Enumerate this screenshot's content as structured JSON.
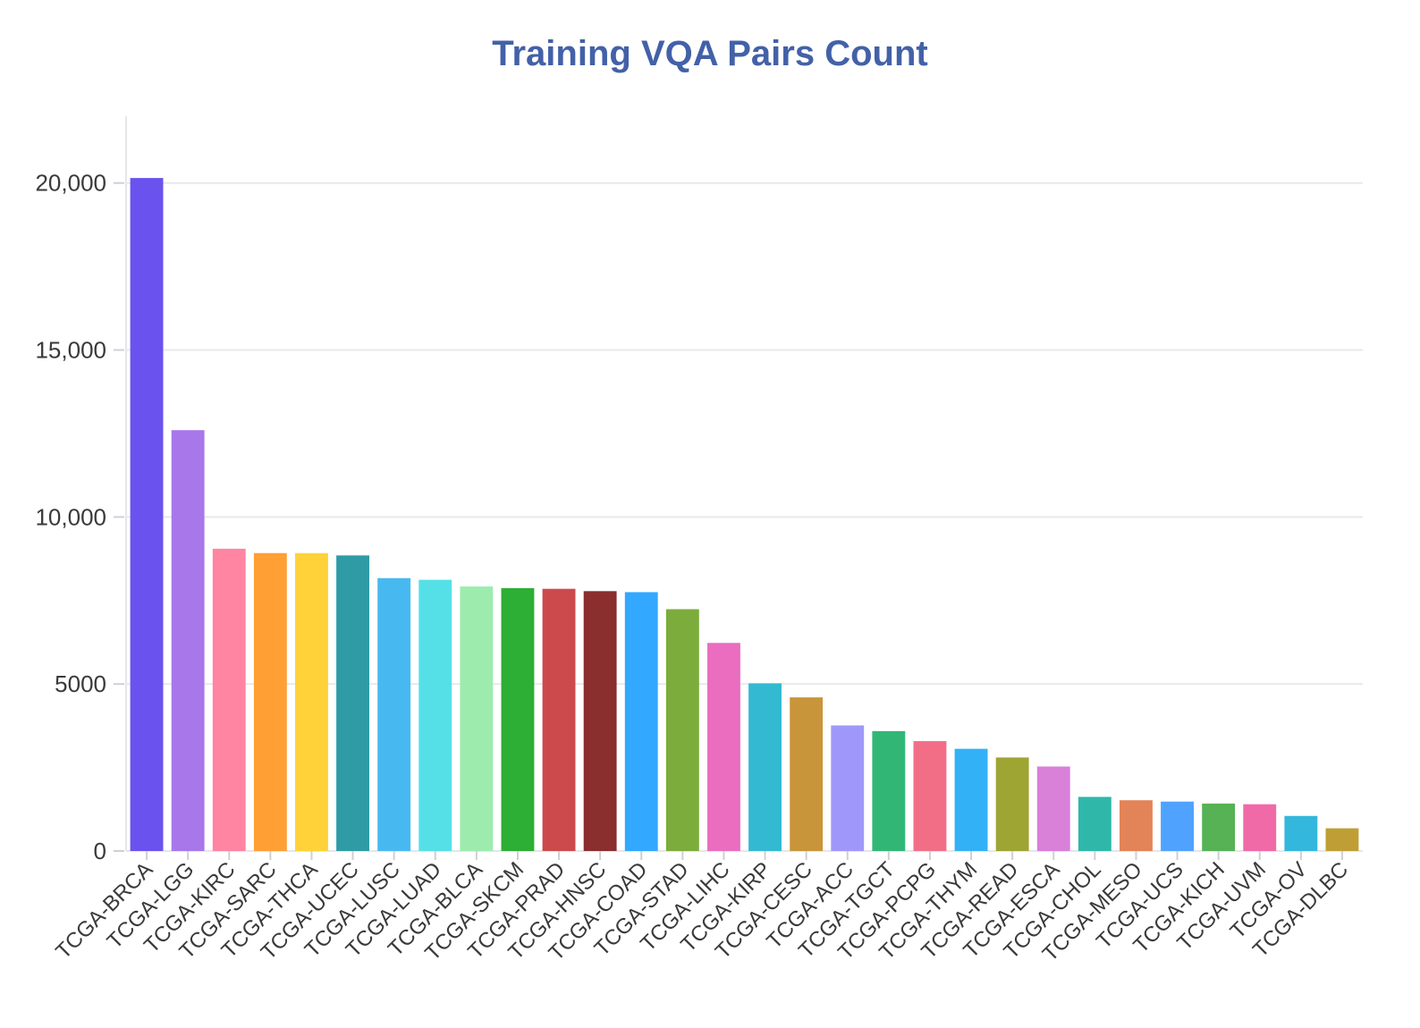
{
  "chart_data": {
    "type": "bar",
    "title": "Training VQA Pairs Count",
    "xlabel": "",
    "ylabel": "",
    "ylim": [
      0,
      22000
    ],
    "yticks": [
      0,
      5000,
      10000,
      15000,
      20000
    ],
    "ytick_labels": [
      "0",
      "5000",
      "10,000",
      "15,000",
      "20,000"
    ],
    "grid": true,
    "categories": [
      "TCGA-BRCA",
      "TCGA-LGG",
      "TCGA-KIRC",
      "TCGA-SARC",
      "TCGA-THCA",
      "TCGA-UCEC",
      "TCGA-LUSC",
      "TCGA-LUAD",
      "TCGA-BLCA",
      "TCGA-SKCM",
      "TCGA-PRAD",
      "TCGA-HNSC",
      "TCGA-COAD",
      "TCGA-STAD",
      "TCGA-LIHC",
      "TCGA-KIRP",
      "TCGA-CESC",
      "TCGA-ACC",
      "TCGA-TGCT",
      "TCGA-PCPG",
      "TCGA-THYM",
      "TCGA-READ",
      "TCGA-ESCA",
      "TCGA-CHOL",
      "TCGA-MESO",
      "TCGA-UCS",
      "TCGA-KICH",
      "TCGA-UVM",
      "TCGA-OV",
      "TCGA-DLBC"
    ],
    "values": [
      20150,
      12600,
      9050,
      8920,
      8920,
      8850,
      8170,
      8120,
      7920,
      7870,
      7850,
      7780,
      7750,
      7240,
      6230,
      5020,
      4600,
      3760,
      3590,
      3290,
      3060,
      2800,
      2530,
      1620,
      1520,
      1480,
      1420,
      1400,
      1050,
      680
    ],
    "colors": [
      "#6a52ee",
      "#a877ea",
      "#ff85a2",
      "#ff9f34",
      "#ffd23a",
      "#2f9ba5",
      "#48b9f0",
      "#55e0e8",
      "#9decae",
      "#2dae34",
      "#cc4a4c",
      "#8a2e2e",
      "#33a8ff",
      "#7bac3c",
      "#ea6dbf",
      "#33b9d2",
      "#c9953a",
      "#9f98fa",
      "#32b676",
      "#f26e86",
      "#33b1f6",
      "#9ea533",
      "#d980d9",
      "#2fb8aa",
      "#e38458",
      "#4fa3ff",
      "#57b155",
      "#f06aa8",
      "#34b7dc",
      "#bf9e35"
    ]
  }
}
